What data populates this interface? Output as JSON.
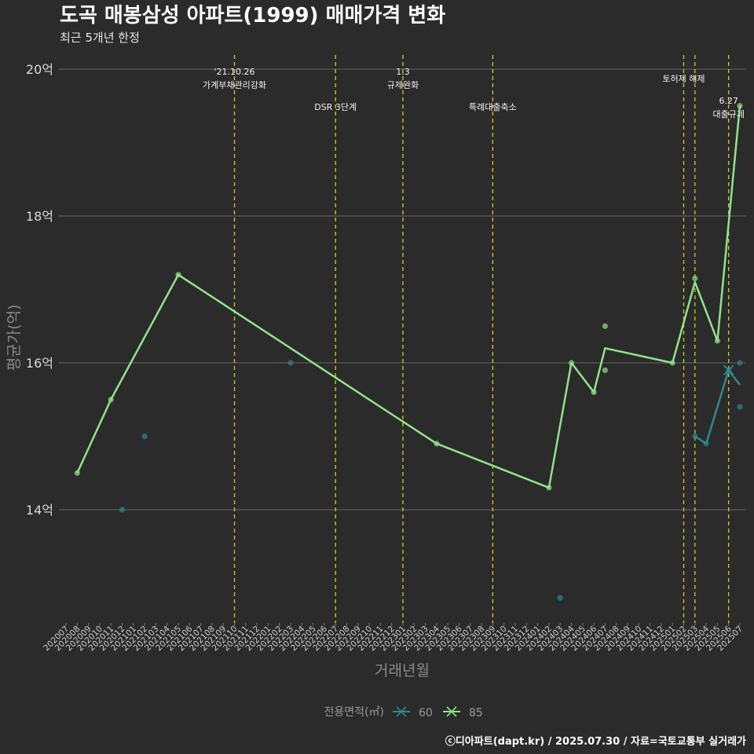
{
  "chart_data": {
    "type": "line",
    "title": "도곡 매봉삼성 아파트(1999) 매매가격 변화",
    "subtitle": "최근 5개년 한정",
    "xlabel": "거래년월",
    "ylabel": "평균가(억)",
    "ylim": [
      12.5,
      20.3
    ],
    "yticks": [
      {
        "value": 14,
        "label": "14억"
      },
      {
        "value": 16,
        "label": "16억"
      },
      {
        "value": 18,
        "label": "18억"
      },
      {
        "value": 20,
        "label": "20억"
      }
    ],
    "categories": [
      "202007",
      "202008",
      "202009",
      "202010",
      "202011",
      "202012",
      "202101",
      "202102",
      "202103",
      "202104",
      "202105",
      "202106",
      "202107",
      "202108",
      "202109",
      "202110",
      "202111",
      "202112",
      "202201",
      "202202",
      "202203",
      "202204",
      "202205",
      "202206",
      "202207",
      "202208",
      "202209",
      "202210",
      "202211",
      "202212",
      "202301",
      "202302",
      "202303",
      "202304",
      "202305",
      "202306",
      "202307",
      "202308",
      "202309",
      "202310",
      "202311",
      "202312",
      "202401",
      "202402",
      "202403",
      "202404",
      "202405",
      "202406",
      "202407",
      "202408",
      "202409",
      "202410",
      "202411",
      "202412",
      "202501",
      "202502",
      "202503",
      "202504",
      "202505",
      "202506",
      "202507"
    ],
    "series": [
      {
        "name": "60",
        "color": "#2a8a8e",
        "points": [
          {
            "x": "202012",
            "y": 14.0
          },
          {
            "x": "202102",
            "y": 15.0
          },
          {
            "x": "202203",
            "y": 16.0
          },
          {
            "x": "202403",
            "y": 12.8
          },
          {
            "x": "202503",
            "y": 15.0
          },
          {
            "x": "202504",
            "y": 14.9
          },
          {
            "x": "202506",
            "y": 15.9
          },
          {
            "x": "202507",
            "y": 16.0
          },
          {
            "x": "202507",
            "y": 15.4
          }
        ],
        "line": [
          {
            "x": "202503",
            "y": 15.0
          },
          {
            "x": "202504",
            "y": 14.9
          },
          {
            "x": "202506",
            "y": 15.9
          },
          {
            "x": "202507",
            "y": 15.7
          }
        ]
      },
      {
        "name": "85",
        "color": "#8fe388",
        "points": [
          {
            "x": "202008",
            "y": 14.5
          },
          {
            "x": "202011",
            "y": 15.5
          },
          {
            "x": "202105",
            "y": 17.2
          },
          {
            "x": "202304",
            "y": 14.9
          },
          {
            "x": "202402",
            "y": 14.3
          },
          {
            "x": "202404",
            "y": 16.0
          },
          {
            "x": "202406",
            "y": 15.6
          },
          {
            "x": "202407",
            "y": 16.5
          },
          {
            "x": "202407",
            "y": 15.9
          },
          {
            "x": "202501",
            "y": 16.0
          },
          {
            "x": "202503",
            "y": 17.15
          },
          {
            "x": "202505",
            "y": 16.3
          },
          {
            "x": "202507",
            "y": 19.5
          }
        ],
        "line": [
          {
            "x": "202008",
            "y": 14.5
          },
          {
            "x": "202011",
            "y": 15.5
          },
          {
            "x": "202105",
            "y": 17.2
          },
          {
            "x": "202304",
            "y": 14.9
          },
          {
            "x": "202402",
            "y": 14.3
          },
          {
            "x": "202404",
            "y": 16.0
          },
          {
            "x": "202406",
            "y": 15.6
          },
          {
            "x": "202407",
            "y": 16.2
          },
          {
            "x": "202501",
            "y": 16.0
          },
          {
            "x": "202503",
            "y": 17.1
          },
          {
            "x": "202505",
            "y": 16.3
          },
          {
            "x": "202507",
            "y": 19.5
          }
        ]
      }
    ],
    "events": [
      {
        "x": "202110",
        "lines": [
          "'21.10.26",
          "가계부채관리강화"
        ],
        "tier": "high"
      },
      {
        "x": "202207",
        "lines": [
          "DSR 3단계"
        ],
        "tier": "low"
      },
      {
        "x": "202301",
        "lines": [
          "1.3",
          "규제완화"
        ],
        "tier": "high"
      },
      {
        "x": "202309",
        "lines": [
          "특례대출축소"
        ],
        "tier": "low"
      },
      {
        "x": "202502",
        "lines": [
          "토허제 해제"
        ],
        "tier": "mid"
      },
      {
        "x": "202503",
        "lines": [],
        "tier": "mid"
      },
      {
        "x": "202506",
        "lines": [
          "6.27",
          "대출규제"
        ],
        "tier": "right"
      }
    ],
    "legend": {
      "title": "전용면적(㎡)",
      "position": "bottom"
    },
    "caption": "ⓒ디아파트(dapt.kr) / 2025.07.30 / 자료=국토교통부 실거래가",
    "grid": true
  },
  "colors": {
    "background": "#2b2b2c",
    "grid": "#5a5a5a",
    "event_line": "#c8d21a"
  }
}
